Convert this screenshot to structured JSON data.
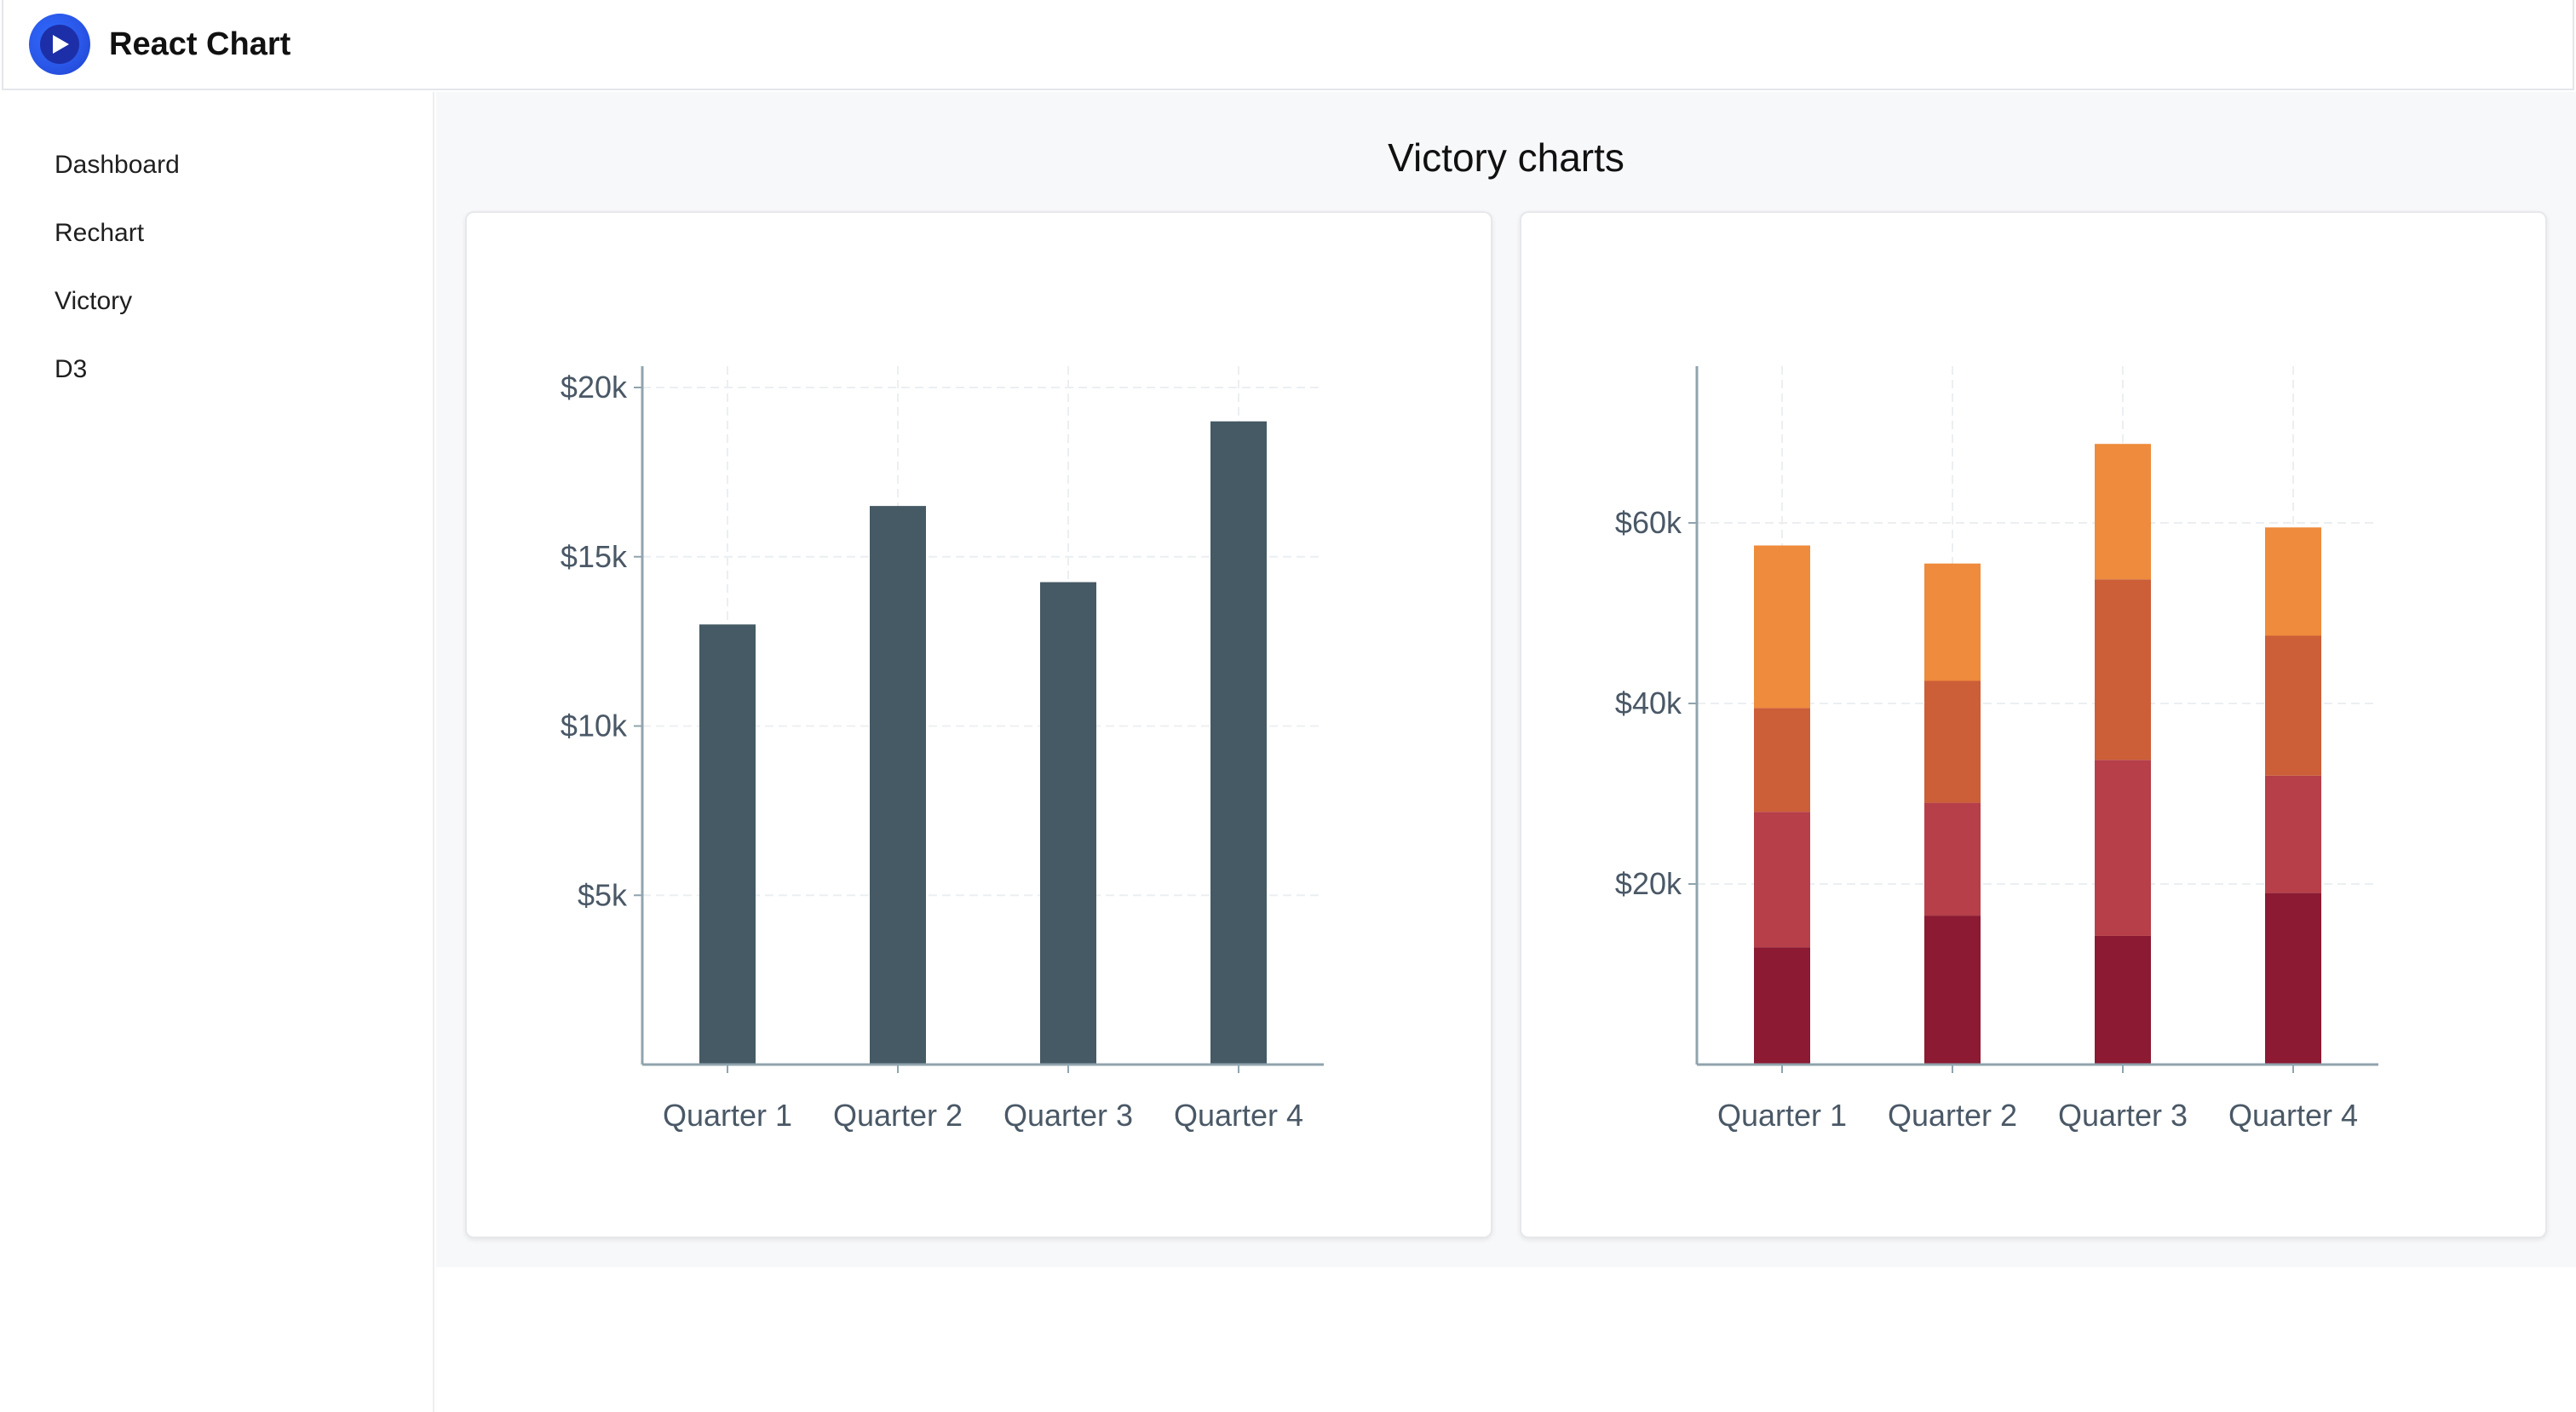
{
  "header": {
    "title": "React Chart",
    "logo_icon": "play-logo-icon"
  },
  "sidebar": {
    "items": [
      {
        "label": "Dashboard"
      },
      {
        "label": "Rechart"
      },
      {
        "label": "Victory"
      },
      {
        "label": "D3"
      }
    ]
  },
  "main": {
    "title": "Victory charts"
  },
  "chart_data": [
    {
      "type": "bar",
      "categories": [
        "Quarter 1",
        "Quarter 2",
        "Quarter 3",
        "Quarter 4"
      ],
      "values": [
        13000,
        16500,
        14250,
        19000
      ],
      "ylim": [
        0,
        20000
      ],
      "yticks": [
        5000,
        10000,
        15000,
        20000
      ],
      "ytick_labels": [
        "$5k",
        "$10k",
        "$15k",
        "$20k"
      ],
      "grid": true,
      "colors": {
        "bar": "#455a64",
        "axis": "#90a4ae",
        "grid": "#eceff1"
      }
    },
    {
      "type": "bar",
      "stacked": true,
      "categories": [
        "Quarter 1",
        "Quarter 2",
        "Quarter 3",
        "Quarter 4"
      ],
      "series": [
        {
          "values": [
            13000,
            16500,
            14250,
            19000
          ],
          "color": "#8b1a32"
        },
        {
          "values": [
            15000,
            12500,
            19500,
            13000
          ],
          "color": "#b63f49"
        },
        {
          "values": [
            11500,
            13500,
            20000,
            15500
          ],
          "color": "#cc5e38"
        },
        {
          "values": [
            18000,
            13000,
            15000,
            12000
          ],
          "color": "#ee8b3c"
        }
      ],
      "ylim": [
        0,
        75000
      ],
      "yticks": [
        20000,
        40000,
        60000
      ],
      "ytick_labels": [
        "$20k",
        "$40k",
        "$60k"
      ],
      "grid": true,
      "colors": {
        "axis": "#90a4ae",
        "grid": "#eceff1"
      }
    }
  ]
}
